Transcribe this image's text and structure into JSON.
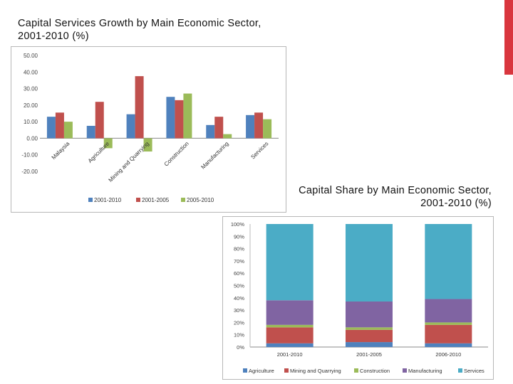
{
  "slide": {
    "accent_color": "#d9363e"
  },
  "chart_data": [
    {
      "type": "bar",
      "title": "Capital Services Growth by Main Economic Sector, 2001-2010 (%)",
      "categories": [
        "Malaysia",
        "Agriculture",
        "Mining and Quarrying",
        "Construction",
        "Manufacturing",
        "Services"
      ],
      "series": [
        {
          "name": "2001-2010",
          "color": "#4f81bd",
          "values": [
            13.0,
            7.5,
            14.5,
            25.0,
            8.0,
            14.0
          ]
        },
        {
          "name": "2001-2005",
          "color": "#c0504d",
          "values": [
            15.5,
            22.0,
            37.5,
            23.0,
            13.0,
            15.5
          ]
        },
        {
          "name": "2005-2010",
          "color": "#9bbb59",
          "values": [
            10.0,
            -6.0,
            -8.0,
            27.0,
            2.5,
            11.5
          ]
        }
      ],
      "ylim": [
        -20,
        50
      ],
      "yticks": [
        "-20.00",
        "-10.00",
        "0.00",
        "10.00",
        "20.00",
        "30.00",
        "40.00",
        "50.00"
      ],
      "ytick_values": [
        -20,
        -10,
        0,
        10,
        20,
        30,
        40,
        50
      ],
      "legend_position": "bottom",
      "grid": false
    },
    {
      "type": "bar",
      "stacked": true,
      "title": "Capital Share by Main Economic Sector, 2001-2010 (%)",
      "categories": [
        "2001-2010",
        "2001-2005",
        "2006-2010"
      ],
      "series": [
        {
          "name": "Agriculture",
          "color": "#4f81bd",
          "values": [
            3,
            4,
            3
          ]
        },
        {
          "name": "Mining and Quarrying",
          "color": "#c0504d",
          "values": [
            13,
            10,
            15
          ]
        },
        {
          "name": "Construction",
          "color": "#9bbb59",
          "values": [
            2,
            2,
            2
          ]
        },
        {
          "name": "Manufacturing",
          "color": "#8064a2",
          "values": [
            20,
            21,
            19
          ]
        },
        {
          "name": "Services",
          "color": "#4bacc6",
          "values": [
            62,
            63,
            61
          ]
        }
      ],
      "ylim": [
        0,
        100
      ],
      "yticks": [
        "0%",
        "10%",
        "20%",
        "30%",
        "40%",
        "50%",
        "60%",
        "70%",
        "80%",
        "90%",
        "100%"
      ],
      "ytick_values": [
        0,
        10,
        20,
        30,
        40,
        50,
        60,
        70,
        80,
        90,
        100
      ],
      "legend_position": "bottom",
      "grid": false
    }
  ]
}
